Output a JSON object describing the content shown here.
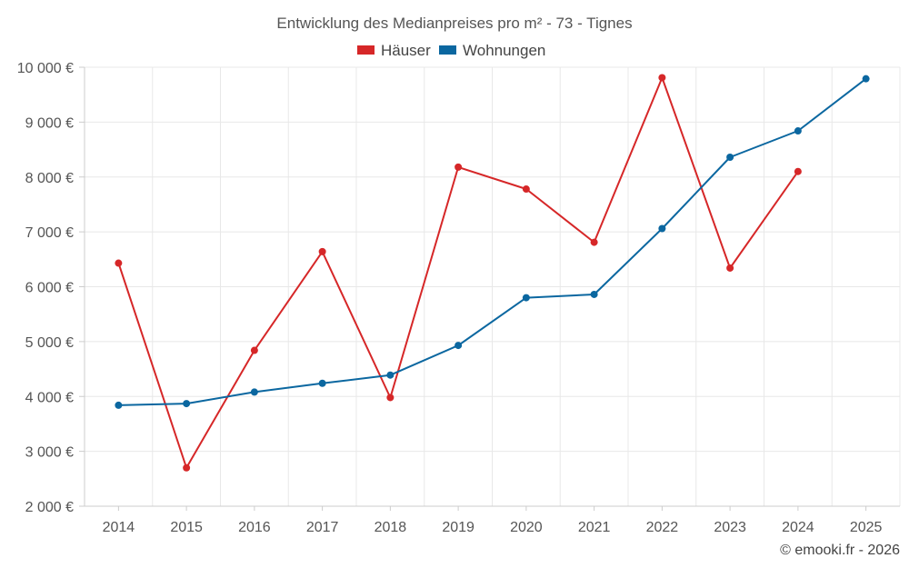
{
  "chart_data": {
    "type": "line",
    "title": "Entwicklung des Medianpreises pro m² - 73 - Tignes",
    "categories": [
      "2014",
      "2015",
      "2016",
      "2017",
      "2018",
      "2019",
      "2020",
      "2021",
      "2022",
      "2023",
      "2024",
      "2025"
    ],
    "series": [
      {
        "name": "Häuser",
        "color": "#d62728",
        "values": [
          6430,
          2700,
          4840,
          6640,
          3980,
          8180,
          7780,
          6810,
          9810,
          6340,
          8100,
          null
        ]
      },
      {
        "name": "Wohnungen",
        "color": "#0b67a0",
        "values": [
          3840,
          3870,
          4080,
          4240,
          4390,
          4930,
          5800,
          5860,
          7060,
          8360,
          8840,
          9790
        ]
      }
    ],
    "ylim": [
      2000,
      10000
    ],
    "yticks": [
      2000,
      3000,
      4000,
      5000,
      6000,
      7000,
      8000,
      9000,
      10000
    ],
    "ytick_labels": [
      "2 000 €",
      "3 000 €",
      "4 000 €",
      "5 000 €",
      "6 000 €",
      "7 000 €",
      "8 000 €",
      "9 000 €",
      "10 000 €"
    ],
    "xlabel": "",
    "ylabel": "",
    "grid": true,
    "legend_position": "top-center"
  },
  "credit": "© emooki.fr - 2026"
}
